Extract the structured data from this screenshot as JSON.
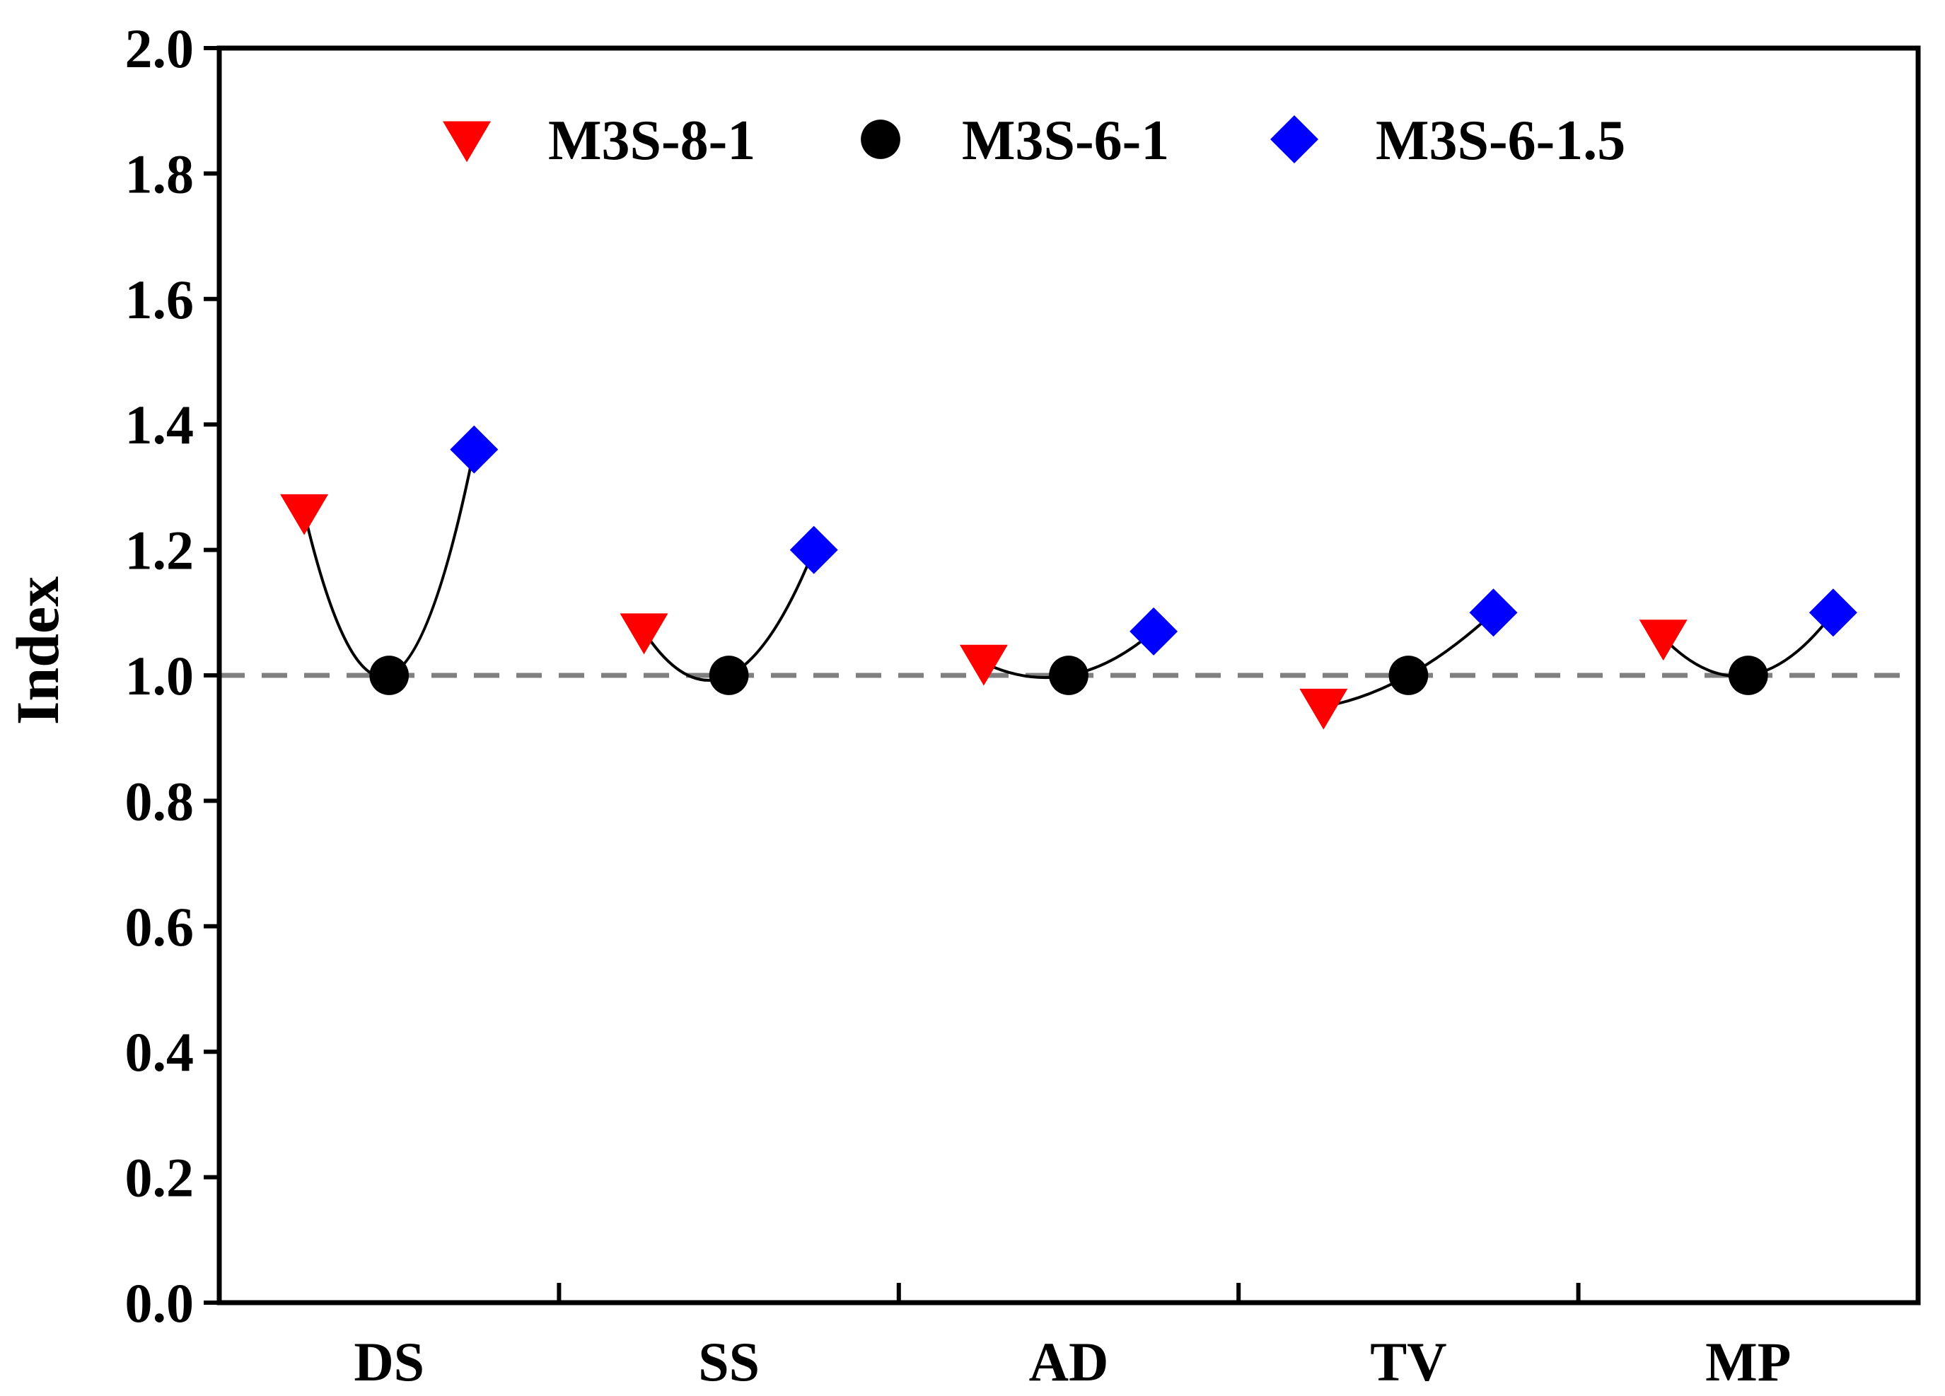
{
  "chart_data": {
    "type": "scatter",
    "ylabel": "Index",
    "xlabel": "",
    "ylim": [
      0.0,
      2.0
    ],
    "yticks": [
      "0.0",
      "0.2",
      "0.4",
      "0.6",
      "0.8",
      "1.0",
      "1.2",
      "1.4",
      "1.6",
      "1.8",
      "2.0"
    ],
    "categories": [
      "DS",
      "SS",
      "AD",
      "TV",
      "MP"
    ],
    "reference_line": {
      "y": 1.0,
      "style": "dashed",
      "color": "#808080"
    },
    "legend": {
      "placement": "top"
    },
    "series": [
      {
        "name": "M3S-8-1",
        "marker": "triangle-down",
        "color": "#ff0000",
        "values": [
          1.26,
          1.07,
          1.02,
          0.95,
          1.06
        ]
      },
      {
        "name": "M3S-6-1",
        "marker": "circle",
        "color": "#000000",
        "values": [
          1.0,
          1.0,
          1.0,
          1.0,
          1.0
        ]
      },
      {
        "name": "M3S-6-1.5",
        "marker": "diamond",
        "color": "#0000ff",
        "values": [
          1.36,
          1.2,
          1.07,
          1.1,
          1.1
        ]
      }
    ]
  }
}
